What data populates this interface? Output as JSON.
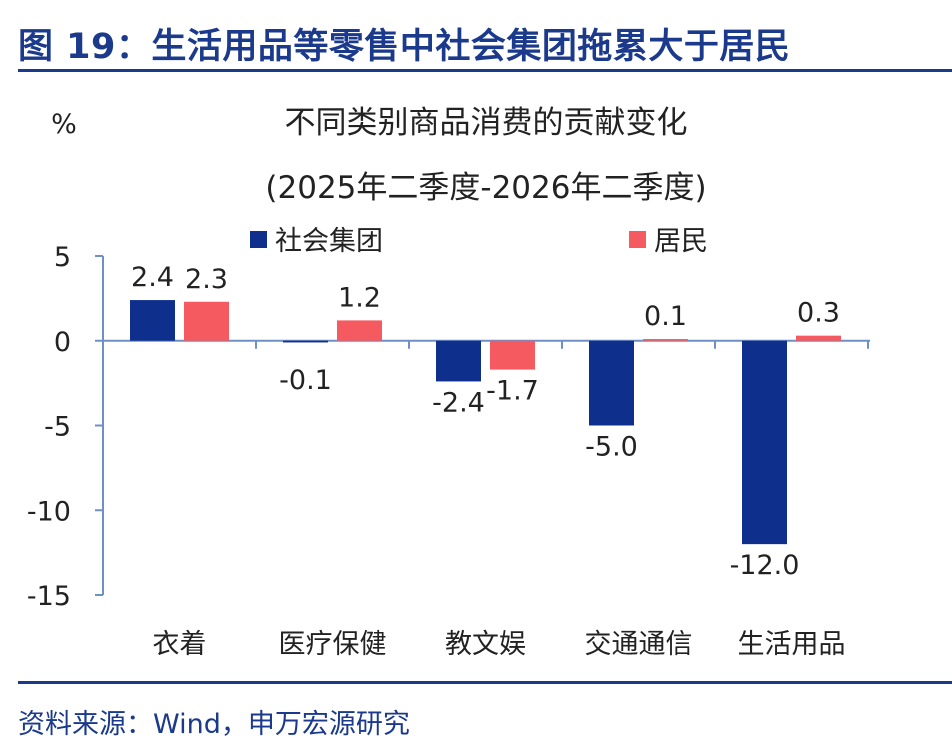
{
  "figure": {
    "title": "图 19：生活用品等零售中社会集团拖累大于居民",
    "source": "资料来源：Wind，申万宏源研究"
  },
  "colors": {
    "accent": "#1b3a8c",
    "series_1": "#0f2f8c",
    "series_2": "#f45a5f",
    "axis": "#6f8fc7"
  },
  "chart_data": {
    "type": "bar",
    "title": "不同类别商品消费的贡献变化",
    "subtitle": "(2025年二季度-2026年二季度)",
    "ylabel": "%",
    "xlabel": "",
    "ylim": [
      -15,
      5
    ],
    "yticks": [
      5,
      0,
      -5,
      -10,
      -15
    ],
    "grid": false,
    "legend": "top",
    "categories": [
      "衣着",
      "医疗保健",
      "教文娱",
      "交通通信",
      "生活用品"
    ],
    "series": [
      {
        "name": "社会集团",
        "values": [
          2.4,
          -0.1,
          -2.4,
          -5.0,
          -12.0
        ],
        "labels": [
          "2.4",
          "-0.1",
          "-2.4",
          "-5.0",
          "-12.0"
        ]
      },
      {
        "name": "居民",
        "values": [
          2.3,
          1.2,
          -1.7,
          0.1,
          0.3
        ],
        "labels": [
          "2.3",
          "1.2",
          "-1.7",
          "0.1",
          "0.3"
        ]
      }
    ]
  }
}
